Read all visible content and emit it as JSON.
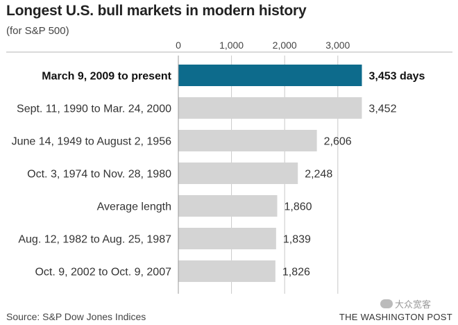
{
  "title": "Longest U.S. bull markets in modern history",
  "subtitle": "(for S&P 500)",
  "source": "Source: S&P Dow Jones Indices",
  "publisher": "THE WASHINGTON POST",
  "watermark": "大众宽客",
  "colors": {
    "highlight": "#0d6b8c",
    "bar": "#d4d4d4",
    "axis": "#999999",
    "grid": "#c8c8c8"
  },
  "chart_data": {
    "type": "bar",
    "orientation": "horizontal",
    "title": "Longest U.S. bull markets in modern history",
    "subtitle": "(for S&P 500)",
    "xlabel": "",
    "ylabel": "",
    "xlim": [
      0,
      3453
    ],
    "ticks": [
      0,
      1000,
      2000,
      3000
    ],
    "tick_labels": [
      "0",
      "1,000",
      "2,000",
      "3,000"
    ],
    "categories": [
      "March 9, 2009 to present",
      "Sept. 11, 1990 to Mar. 24, 2000",
      "June 14, 1949 to August 2, 1956",
      "Oct. 3, 1974 to Nov. 28, 1980",
      "Average length",
      "Aug. 12, 1982 to Aug. 25, 1987",
      "Oct. 9, 2002 to Oct. 9, 2007"
    ],
    "values": [
      3453,
      3452,
      2606,
      2248,
      1860,
      1839,
      1826
    ],
    "value_labels": [
      "3,453 days",
      "3,452",
      "2,606",
      "2,248",
      "1,860",
      "1,839",
      "1,826"
    ],
    "highlight_index": 0,
    "legend": "none"
  }
}
